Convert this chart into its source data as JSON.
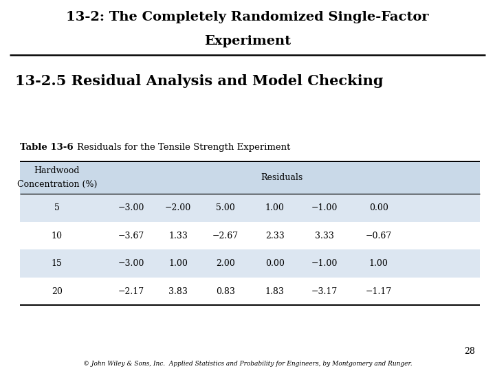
{
  "title_line1": "13-2: The Completely Randomized Single-Factor",
  "title_line2": "Experiment",
  "subtitle": "13-2.5 Residual Analysis and Model Checking",
  "table_label": "Table 13-6",
  "table_caption": "Residuals for the Tensile Strength Experiment",
  "col_header_left": [
    "Hardwood",
    "Concentration (%)"
  ],
  "col_header_right": "Residuals",
  "rows": [
    [
      "5",
      "−3.00",
      "−2.00",
      "5.00",
      "1.00",
      "−1.00",
      "0.00"
    ],
    [
      "10",
      "−3.67",
      "1.33",
      "−2.67",
      "2.33",
      "3.33",
      "−0.67"
    ],
    [
      "15",
      "−3.00",
      "1.00",
      "2.00",
      "0.00",
      "−1.00",
      "1.00"
    ],
    [
      "20",
      "−2.17",
      "3.83",
      "0.83",
      "1.83",
      "−3.17",
      "−1.17"
    ]
  ],
  "shaded_rows": [
    0,
    2
  ],
  "header_bg": "#c9d9e8",
  "row_shade_bg": "#dce6f1",
  "row_white_bg": "#ffffff",
  "page_number": "28",
  "footer": "© John Wiley & Sons, Inc.  Applied Statistics and Probability for Engineers, by Montgomery and Runger.",
  "background_color": "#ffffff",
  "title_color": "#000000",
  "subtitle_color": "#000000"
}
